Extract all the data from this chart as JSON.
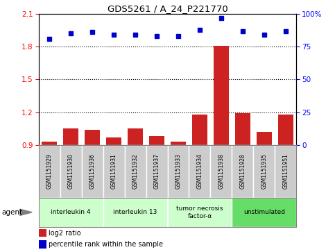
{
  "title": "GDS5261 / A_24_P221770",
  "samples": [
    "GSM1151929",
    "GSM1151930",
    "GSM1151936",
    "GSM1151931",
    "GSM1151932",
    "GSM1151937",
    "GSM1151933",
    "GSM1151934",
    "GSM1151938",
    "GSM1151928",
    "GSM1151935",
    "GSM1151951"
  ],
  "log2_ratio": [
    0.93,
    1.05,
    1.04,
    0.97,
    1.05,
    0.98,
    0.93,
    1.18,
    1.81,
    1.19,
    1.02,
    1.18
  ],
  "percentile": [
    81,
    85,
    86,
    84,
    84,
    83,
    83,
    88,
    97,
    87,
    84,
    87
  ],
  "ylim_left": [
    0.9,
    2.1
  ],
  "ylim_right": [
    0,
    100
  ],
  "yticks_left": [
    0.9,
    1.2,
    1.5,
    1.8,
    2.1
  ],
  "yticks_right": [
    0,
    25,
    50,
    75,
    100
  ],
  "ytick_labels_right": [
    "0",
    "25",
    "50",
    "75",
    "100%"
  ],
  "groups": [
    {
      "label": "interleukin 4",
      "start": 0,
      "end": 3,
      "color": "#ccffcc"
    },
    {
      "label": "interleukin 13",
      "start": 3,
      "end": 6,
      "color": "#ccffcc"
    },
    {
      "label": "tumor necrosis\nfactor-α",
      "start": 6,
      "end": 9,
      "color": "#ccffcc"
    },
    {
      "label": "unstimulated",
      "start": 9,
      "end": 12,
      "color": "#66dd66"
    }
  ],
  "bar_color": "#cc2222",
  "dot_color": "#0000cc",
  "sample_box_color": "#cccccc",
  "legend_bar_label": "log2 ratio",
  "legend_dot_label": "percentile rank within the sample",
  "agent_label": "agent",
  "dotted_lines": [
    1.2,
    1.5,
    1.8
  ],
  "fig_width": 4.83,
  "fig_height": 3.63,
  "fig_dpi": 100
}
